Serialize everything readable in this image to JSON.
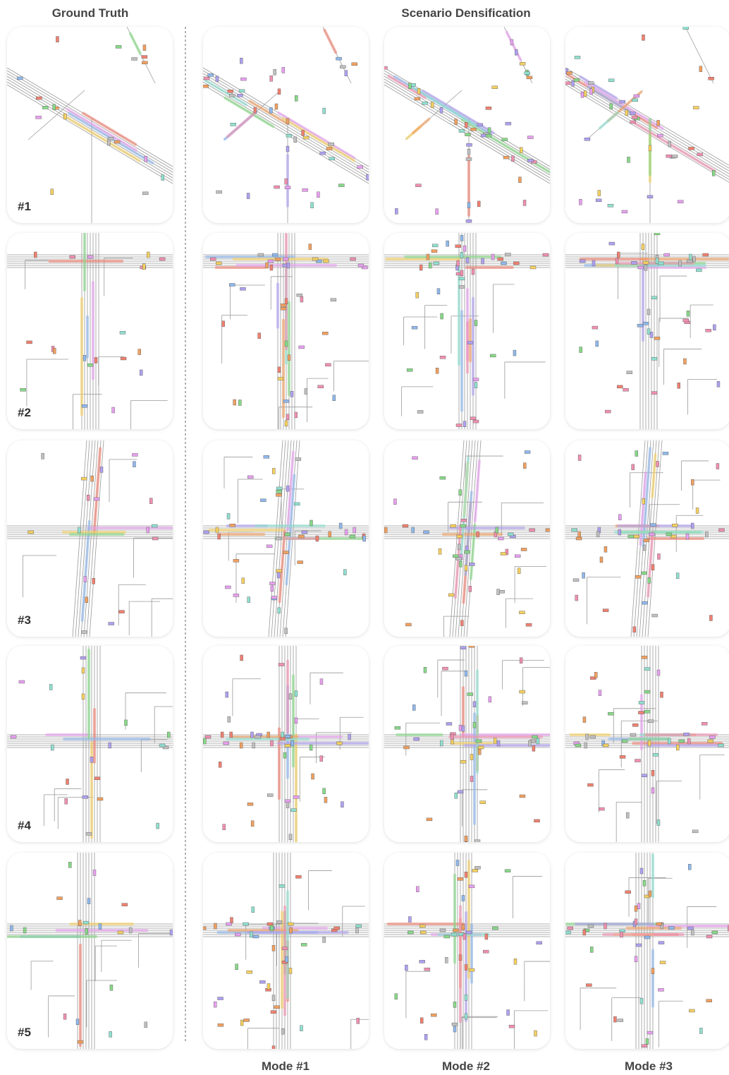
{
  "header": {
    "left": "Ground Truth",
    "right": "Scenario Densification"
  },
  "rows": [
    "#1",
    "#2",
    "#3",
    "#4",
    "#5"
  ],
  "modes": [
    "Mode #1",
    "Mode #2",
    "Mode #3"
  ]
}
